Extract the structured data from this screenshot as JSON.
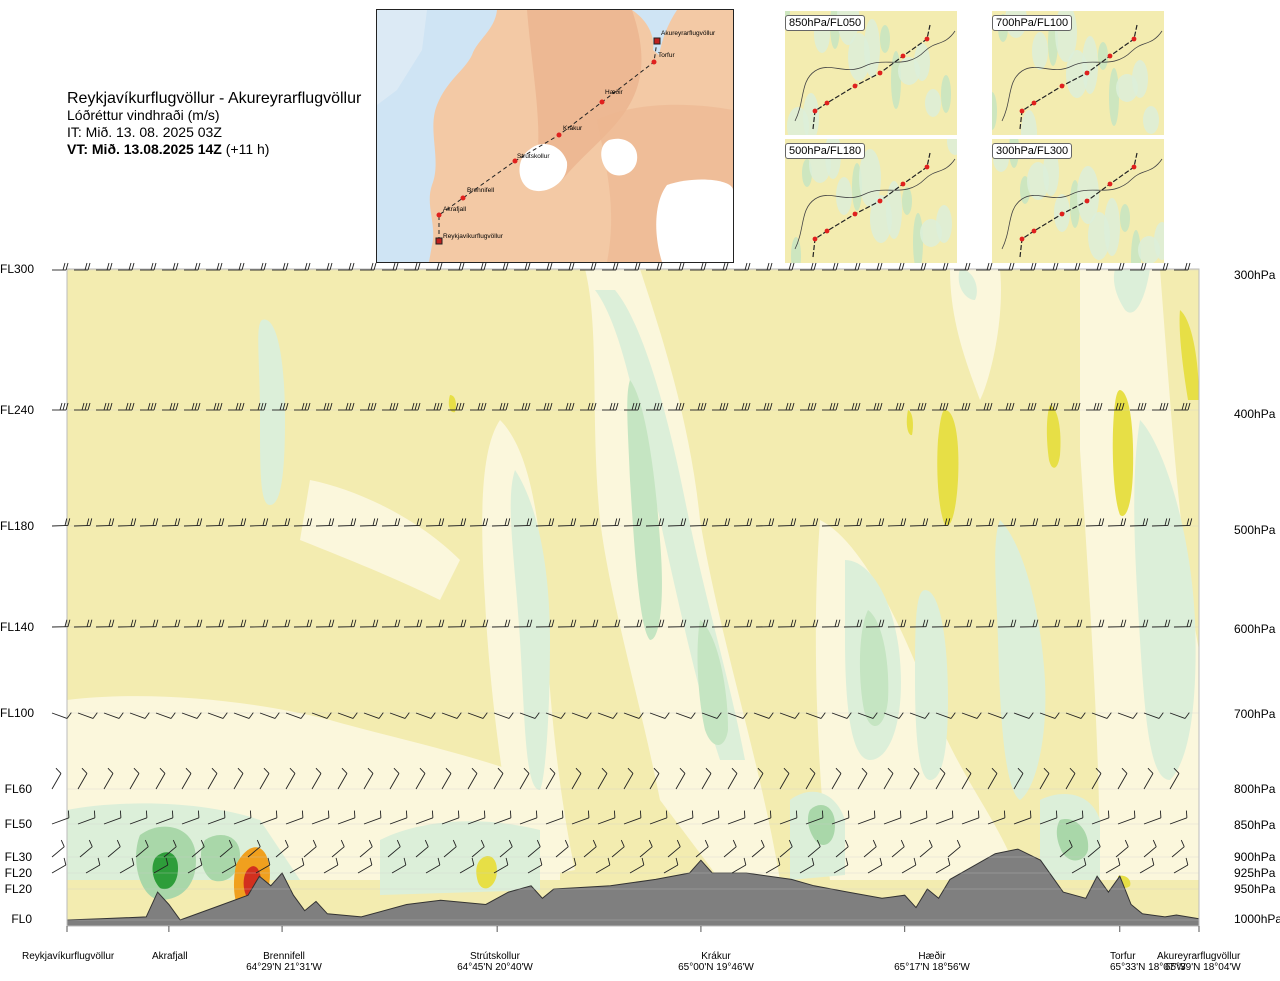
{
  "header": {
    "route_title": "Reykjavíkurflugvöllur - Akureyrarflugvöllur",
    "field_name": "Lóðréttur vindhraði (m/s)",
    "issue_time": "IT: Mið. 13. 08. 2025 03Z",
    "valid_prefix": "VT: Mið. 13.08.2025 14Z",
    "valid_suffix": "(+11 h)"
  },
  "map": {
    "waypoints": [
      "Akureyrarflugvöllur",
      "Torfur",
      "Hæðir",
      "Krákur",
      "Strútskollur",
      "Brennifell",
      "Akrafjall",
      "Reykjavíkurflugvöllur"
    ]
  },
  "thumbnails": [
    {
      "label": "850hPa/FL050"
    },
    {
      "label": "700hPa/FL100"
    },
    {
      "label": "500hPa/FL180"
    },
    {
      "label": "300hPa/FL300"
    }
  ],
  "colors": {
    "background_field": "#f3ecb0",
    "weak_updraft": "#dcefd9",
    "moderate_updraft": "#a9d7a9",
    "strong_updraft": "#2e9d3a",
    "pale_band": "#fbf7dc",
    "downdraft_yellow": "#e7df46",
    "downdraft_orange": "#f0a01e",
    "downdraft_red": "#d2301e",
    "terrain": "#7f7f7f",
    "route_red": "#e0201e"
  },
  "chart_data": {
    "type": "heatmap",
    "title": "Reykjavíkurflugvöllur - Akureyrarflugvöllur",
    "variable": "Lóðréttur vindhraði (m/s)",
    "grid": false,
    "y_left_labels": [
      "FL300",
      "FL240",
      "FL180",
      "FL140",
      "FL100",
      "FL60",
      "FL50",
      "FL30",
      "FL20",
      "FL20",
      "FL0"
    ],
    "y_right_labels": [
      "300hPa",
      "400hPa",
      "500hPa",
      "600hPa",
      "700hPa",
      "800hPa",
      "850hPa",
      "900hPa",
      "925hPa",
      "950hPa",
      "1000hPa"
    ],
    "pressure_levels_hPa": [
      300,
      400,
      500,
      600,
      700,
      800,
      850,
      900,
      925,
      950,
      1000
    ],
    "x_locations": [
      {
        "name": "Reykjavíkurflugvöllur",
        "coord": "",
        "route_fraction": 0.0
      },
      {
        "name": "Akrafjall",
        "coord": "",
        "route_fraction": 0.09
      },
      {
        "name": "Brennifell",
        "coord": "64°29'N 21°31'W",
        "route_fraction": 0.19
      },
      {
        "name": "Strútskollur",
        "coord": "64°45'N 20°40'W",
        "route_fraction": 0.38
      },
      {
        "name": "Krákur",
        "coord": "65°00'N 19°46'W",
        "route_fraction": 0.56
      },
      {
        "name": "Hæðir",
        "coord": "65°17'N 18°56'W",
        "route_fraction": 0.74
      },
      {
        "name": "Torfur",
        "coord": "65°33'N 18°07'W",
        "route_fraction": 0.93
      },
      {
        "name": "Akureyrarflugvöllur",
        "coord": "65°39'N 18°04'W",
        "route_fraction": 1.0
      }
    ],
    "terrain_profile_hPa": [
      [
        0.0,
        1000
      ],
      [
        0.03,
        998
      ],
      [
        0.07,
        995
      ],
      [
        0.08,
        955
      ],
      [
        0.09,
        975
      ],
      [
        0.1,
        1000
      ],
      [
        0.13,
        980
      ],
      [
        0.16,
        960
      ],
      [
        0.17,
        930
      ],
      [
        0.18,
        945
      ],
      [
        0.19,
        925
      ],
      [
        0.2,
        960
      ],
      [
        0.21,
        985
      ],
      [
        0.22,
        970
      ],
      [
        0.23,
        990
      ],
      [
        0.26,
        995
      ],
      [
        0.3,
        975
      ],
      [
        0.33,
        968
      ],
      [
        0.37,
        975
      ],
      [
        0.39,
        955
      ],
      [
        0.41,
        945
      ],
      [
        0.42,
        965
      ],
      [
        0.43,
        950
      ],
      [
        0.45,
        948
      ],
      [
        0.48,
        945
      ],
      [
        0.52,
        935
      ],
      [
        0.55,
        925
      ],
      [
        0.56,
        905
      ],
      [
        0.57,
        925
      ],
      [
        0.6,
        925
      ],
      [
        0.64,
        935
      ],
      [
        0.66,
        945
      ],
      [
        0.69,
        955
      ],
      [
        0.72,
        965
      ],
      [
        0.74,
        960
      ],
      [
        0.75,
        980
      ],
      [
        0.76,
        950
      ],
      [
        0.77,
        965
      ],
      [
        0.78,
        935
      ],
      [
        0.8,
        915
      ],
      [
        0.82,
        895
      ],
      [
        0.84,
        888
      ],
      [
        0.86,
        905
      ],
      [
        0.88,
        955
      ],
      [
        0.9,
        965
      ],
      [
        0.91,
        930
      ],
      [
        0.92,
        955
      ],
      [
        0.93,
        930
      ],
      [
        0.94,
        975
      ],
      [
        0.95,
        990
      ],
      [
        0.97,
        995
      ],
      [
        0.98,
        992
      ],
      [
        1.0,
        998
      ]
    ]
  }
}
